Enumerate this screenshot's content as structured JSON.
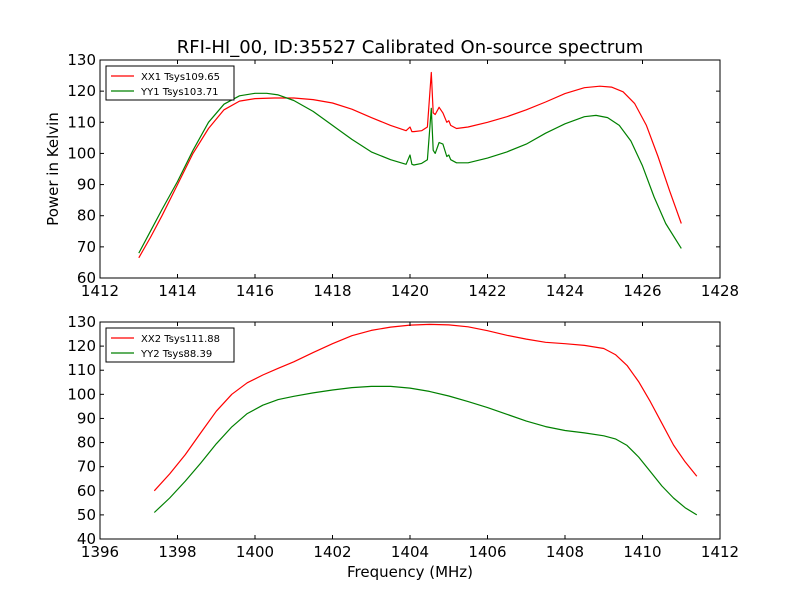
{
  "figure_title": "RFI-HI_00, ID:35527 Calibrated On-source spectrum",
  "colors": {
    "red": "#ff0000",
    "green": "#008000",
    "axes": "#000000",
    "background": "#ffffff"
  },
  "chart_data": [
    {
      "type": "line",
      "title": "RFI-HI_00, ID:35527 Calibrated On-source spectrum",
      "xlabel": "",
      "ylabel": "Power in Kelvin",
      "xlim": [
        1412,
        1428
      ],
      "ylim": [
        60,
        130
      ],
      "xticks": [
        1412,
        1414,
        1416,
        1418,
        1420,
        1422,
        1424,
        1426,
        1428
      ],
      "yticks": [
        60,
        70,
        80,
        90,
        100,
        110,
        120,
        130
      ],
      "grid": false,
      "legend_position": "top-left",
      "series": [
        {
          "name": "XX1 Tsys109.65",
          "color": "#ff0000",
          "x": [
            1413.0,
            1413.3,
            1413.6,
            1414.0,
            1414.4,
            1414.8,
            1415.2,
            1415.6,
            1416.0,
            1416.5,
            1417.0,
            1417.5,
            1418.0,
            1418.5,
            1419.0,
            1419.5,
            1419.9,
            1420.0,
            1420.05,
            1420.1,
            1420.3,
            1420.45,
            1420.55,
            1420.6,
            1420.65,
            1420.75,
            1420.85,
            1420.95,
            1421.0,
            1421.05,
            1421.2,
            1421.5,
            1422.0,
            1422.5,
            1423.0,
            1423.5,
            1424.0,
            1424.5,
            1424.9,
            1425.2,
            1425.5,
            1425.8,
            1426.1,
            1426.4,
            1426.7,
            1427.0
          ],
          "y": [
            66.5,
            73,
            80,
            90,
            100,
            108,
            114,
            116.8,
            117.6,
            117.8,
            117.8,
            117.3,
            116.2,
            114.2,
            111.5,
            109,
            107.3,
            108.5,
            107,
            107,
            107.3,
            108.5,
            126,
            113,
            112.5,
            114.8,
            113,
            110,
            110.5,
            109,
            108,
            108.5,
            110,
            111.8,
            114,
            116.5,
            119.2,
            121.1,
            121.6,
            121.3,
            119.8,
            116,
            109,
            99,
            88,
            77.5
          ]
        },
        {
          "name": "YY1 Tsys103.71",
          "color": "#008000",
          "x": [
            1413.0,
            1413.3,
            1413.6,
            1414.0,
            1414.4,
            1414.8,
            1415.2,
            1415.6,
            1416.0,
            1416.3,
            1416.6,
            1417.0,
            1417.5,
            1418.0,
            1418.5,
            1419.0,
            1419.5,
            1419.9,
            1420.0,
            1420.05,
            1420.1,
            1420.3,
            1420.45,
            1420.55,
            1420.6,
            1420.65,
            1420.75,
            1420.85,
            1420.95,
            1421.0,
            1421.05,
            1421.2,
            1421.5,
            1422.0,
            1422.5,
            1423.0,
            1423.5,
            1424.0,
            1424.5,
            1424.8,
            1425.1,
            1425.4,
            1425.7,
            1426.0,
            1426.3,
            1426.6,
            1427.0
          ],
          "y": [
            68,
            75,
            82,
            91,
            101,
            110,
            115.8,
            118.5,
            119.3,
            119.3,
            118.8,
            117,
            113.5,
            109,
            104.5,
            100.5,
            98,
            96.5,
            99.5,
            96.5,
            96.3,
            96.8,
            98,
            114.5,
            101,
            100,
            103.5,
            103,
            99,
            99.5,
            98,
            97,
            97,
            98.5,
            100.5,
            103,
            106.5,
            109.5,
            111.8,
            112.2,
            111.5,
            109,
            104,
            96,
            86,
            77.5,
            69.5
          ]
        }
      ]
    },
    {
      "type": "line",
      "title": "",
      "xlabel": "Frequency (MHz)",
      "ylabel": "",
      "xlim": [
        1396,
        1412
      ],
      "ylim": [
        40,
        130
      ],
      "xticks": [
        1396,
        1398,
        1400,
        1402,
        1404,
        1406,
        1408,
        1410,
        1412
      ],
      "yticks": [
        40,
        50,
        60,
        70,
        80,
        90,
        100,
        110,
        120,
        130
      ],
      "grid": false,
      "legend_position": "top-left",
      "series": [
        {
          "name": "XX2 Tsys111.88",
          "color": "#ff0000",
          "x": [
            1397.4,
            1397.8,
            1398.2,
            1398.6,
            1399.0,
            1399.4,
            1399.8,
            1400.2,
            1400.6,
            1401.0,
            1401.5,
            1402.0,
            1402.5,
            1403.0,
            1403.5,
            1404.0,
            1404.5,
            1405.0,
            1405.5,
            1406.0,
            1406.5,
            1407.0,
            1407.5,
            1408.0,
            1408.5,
            1409.0,
            1409.3,
            1409.6,
            1409.9,
            1410.2,
            1410.5,
            1410.8,
            1411.1,
            1411.4
          ],
          "y": [
            60,
            67,
            75,
            84,
            93,
            100,
            104.8,
            108,
            110.8,
            113.5,
            117.3,
            121,
            124.3,
            126.5,
            127.9,
            128.7,
            129,
            128.8,
            128,
            126.4,
            124.5,
            122.9,
            121.6,
            121,
            120.3,
            119,
            116.5,
            112,
            105.3,
            97,
            88,
            79,
            72,
            66
          ]
        },
        {
          "name": "YY2 Tsys88.39",
          "color": "#008000",
          "x": [
            1397.4,
            1397.8,
            1398.2,
            1398.6,
            1399.0,
            1399.4,
            1399.8,
            1400.2,
            1400.6,
            1401.0,
            1401.5,
            1402.0,
            1402.5,
            1403.0,
            1403.5,
            1404.0,
            1404.5,
            1405.0,
            1405.5,
            1406.0,
            1406.5,
            1407.0,
            1407.5,
            1408.0,
            1408.5,
            1409.0,
            1409.3,
            1409.6,
            1409.9,
            1410.2,
            1410.5,
            1410.8,
            1411.1,
            1411.4
          ],
          "y": [
            51,
            57,
            64,
            71.5,
            79.5,
            86.5,
            92,
            95.5,
            97.8,
            99.2,
            100.6,
            101.8,
            102.8,
            103.3,
            103.3,
            102.6,
            101.2,
            99.3,
            97,
            94.5,
            91.7,
            88.9,
            86.6,
            85,
            84,
            82.8,
            81.5,
            78.8,
            74,
            68,
            62,
            57,
            53,
            50
          ]
        }
      ]
    }
  ]
}
